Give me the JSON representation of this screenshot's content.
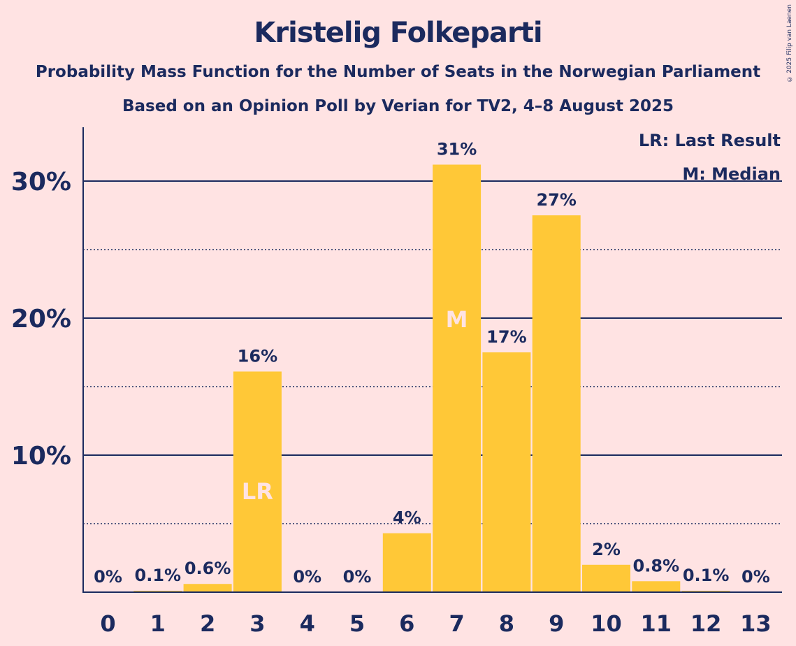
{
  "title": "Kristelig Folkeparti",
  "subtitle1": "Probability Mass Function for the Number of Seats in the Norwegian Parliament",
  "subtitle2": "Based on an Opinion Poll by Verian for TV2, 4–8 August 2025",
  "copyright": "© 2025 Filip van Laenen",
  "colors": {
    "background": "#FFE3E3",
    "bar": "#FFC837",
    "text": "#1B2A5E",
    "inner_label": "#FFE3E3"
  },
  "chart_data": {
    "type": "bar",
    "categories": [
      "0",
      "1",
      "2",
      "3",
      "4",
      "5",
      "6",
      "7",
      "8",
      "9",
      "10",
      "11",
      "12",
      "13"
    ],
    "values": [
      0,
      0.1,
      0.6,
      16.1,
      0,
      0,
      4.3,
      31.2,
      17.5,
      27.5,
      2.0,
      0.8,
      0.1,
      0
    ],
    "data_labels": [
      "0%",
      "0.1%",
      "0.6%",
      "16%",
      "0%",
      "0%",
      "4%",
      "31%",
      "17%",
      "27%",
      "2%",
      "0.8%",
      "0.1%",
      "0%"
    ],
    "inner_labels": [
      {
        "category": "3",
        "label": "LR"
      },
      {
        "category": "7",
        "label": "M"
      }
    ],
    "yticks": [
      10,
      20,
      30
    ],
    "ytick_labels": [
      "10%",
      "20%",
      "30%"
    ],
    "dotted_gridlines": [
      5,
      15,
      25
    ],
    "ylim": [
      0,
      34
    ],
    "legend": [
      "LR: Last Result",
      "M: Median"
    ],
    "legend_position": "top-right",
    "xlabel": "",
    "ylabel": ""
  }
}
